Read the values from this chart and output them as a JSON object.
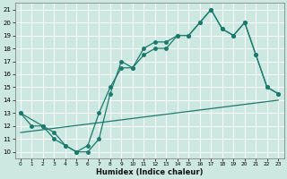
{
  "xlabel": "Humidex (Indice chaleur)",
  "xlim": [
    -0.5,
    23.5
  ],
  "ylim": [
    9.5,
    21.5
  ],
  "xticks": [
    0,
    1,
    2,
    3,
    4,
    5,
    6,
    7,
    8,
    9,
    10,
    11,
    12,
    13,
    14,
    15,
    16,
    17,
    18,
    19,
    20,
    21,
    22,
    23
  ],
  "yticks": [
    10,
    11,
    12,
    13,
    14,
    15,
    16,
    17,
    18,
    19,
    20,
    21
  ],
  "bg_color": "#cce8e0",
  "line_color": "#1a7a6e",
  "grid_color": "#ffffff",
  "line1_x": [
    0,
    1,
    2,
    3,
    4,
    5,
    6,
    7,
    8,
    9,
    10,
    11,
    12,
    13,
    14,
    15,
    16,
    17,
    18,
    19,
    20,
    21,
    22,
    23
  ],
  "line1_y": [
    13,
    12,
    12,
    11,
    10.5,
    10,
    10,
    11,
    14.5,
    17,
    16.5,
    18,
    18.5,
    18.5,
    19,
    19,
    20,
    21,
    19.5,
    19,
    20,
    17.5,
    15,
    14.5
  ],
  "line2_x": [
    0,
    2,
    3,
    4,
    5,
    6,
    7,
    8,
    9,
    10,
    11,
    12,
    13,
    14,
    15,
    16,
    17,
    18,
    19,
    20,
    21,
    22,
    23
  ],
  "line2_y": [
    13,
    12,
    11.5,
    10.5,
    10,
    10.5,
    13,
    15,
    16.5,
    16.5,
    17.5,
    18,
    18,
    19,
    19,
    20,
    21,
    19.5,
    19,
    20,
    17.5,
    15,
    14.5
  ],
  "line3_x": [
    0,
    23
  ],
  "line3_y": [
    11.5,
    14
  ],
  "marker_size": 2.5
}
